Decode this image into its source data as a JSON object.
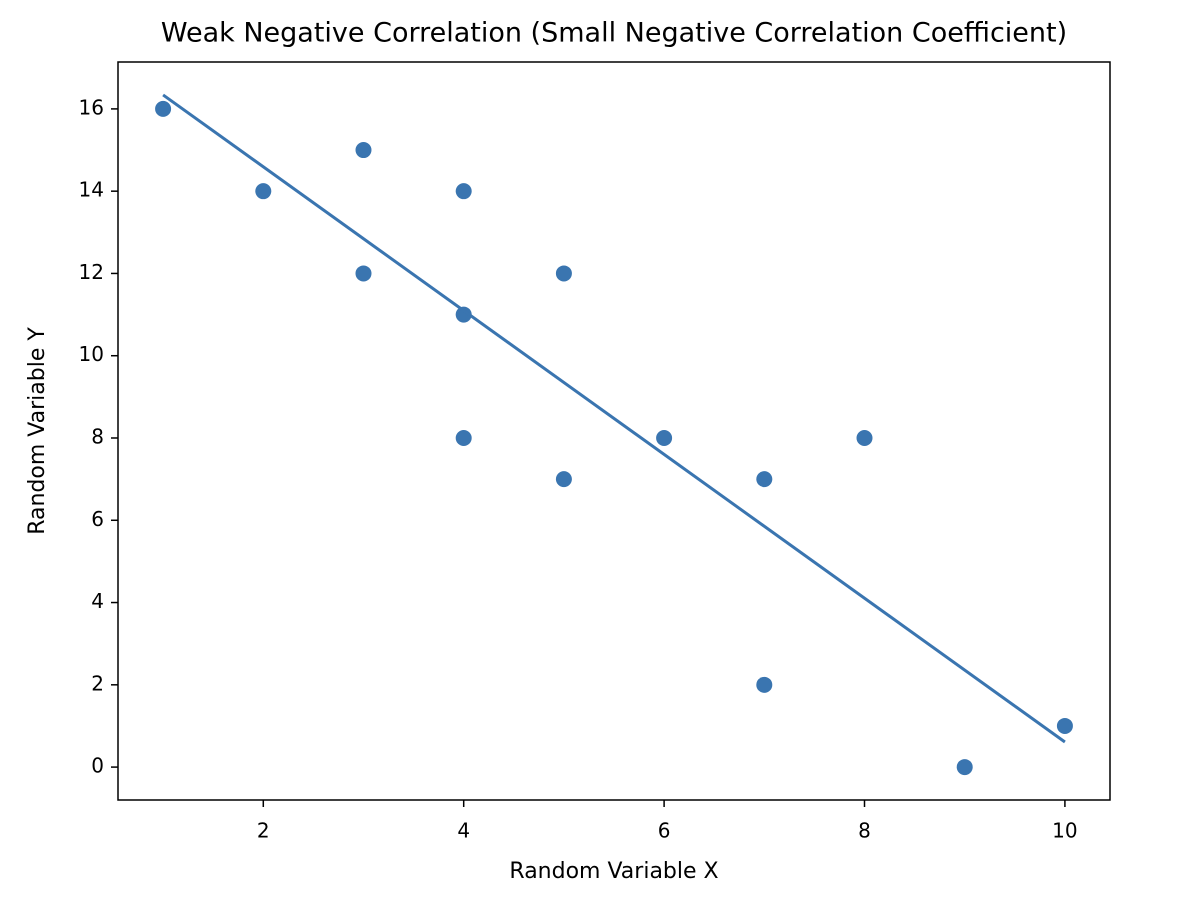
{
  "chart_data": {
    "type": "scatter",
    "title": "Weak Negative Correlation (Small Negative Correlation Coefficient)",
    "x_label": "Random Variable X",
    "y_label": "Random Variable Y",
    "x": [
      1,
      2,
      3,
      3,
      4,
      4,
      4,
      5,
      5,
      6,
      7,
      7,
      8,
      9,
      10
    ],
    "values": [
      16,
      14,
      15,
      12,
      14,
      11,
      8,
      12,
      7,
      8,
      7,
      2,
      8,
      0,
      1
    ],
    "color": "#3a75b0",
    "trend": {
      "x": [
        1,
        10
      ],
      "values": [
        16.34,
        0.61
      ]
    },
    "xlim": [
      0.55,
      10.45
    ],
    "ylim": [
      -0.8,
      17.14
    ],
    "xticks": [
      2,
      4,
      6,
      8,
      10
    ],
    "yticks": [
      0,
      2,
      4,
      6,
      8,
      10,
      12,
      14,
      16
    ],
    "grid": false
  }
}
